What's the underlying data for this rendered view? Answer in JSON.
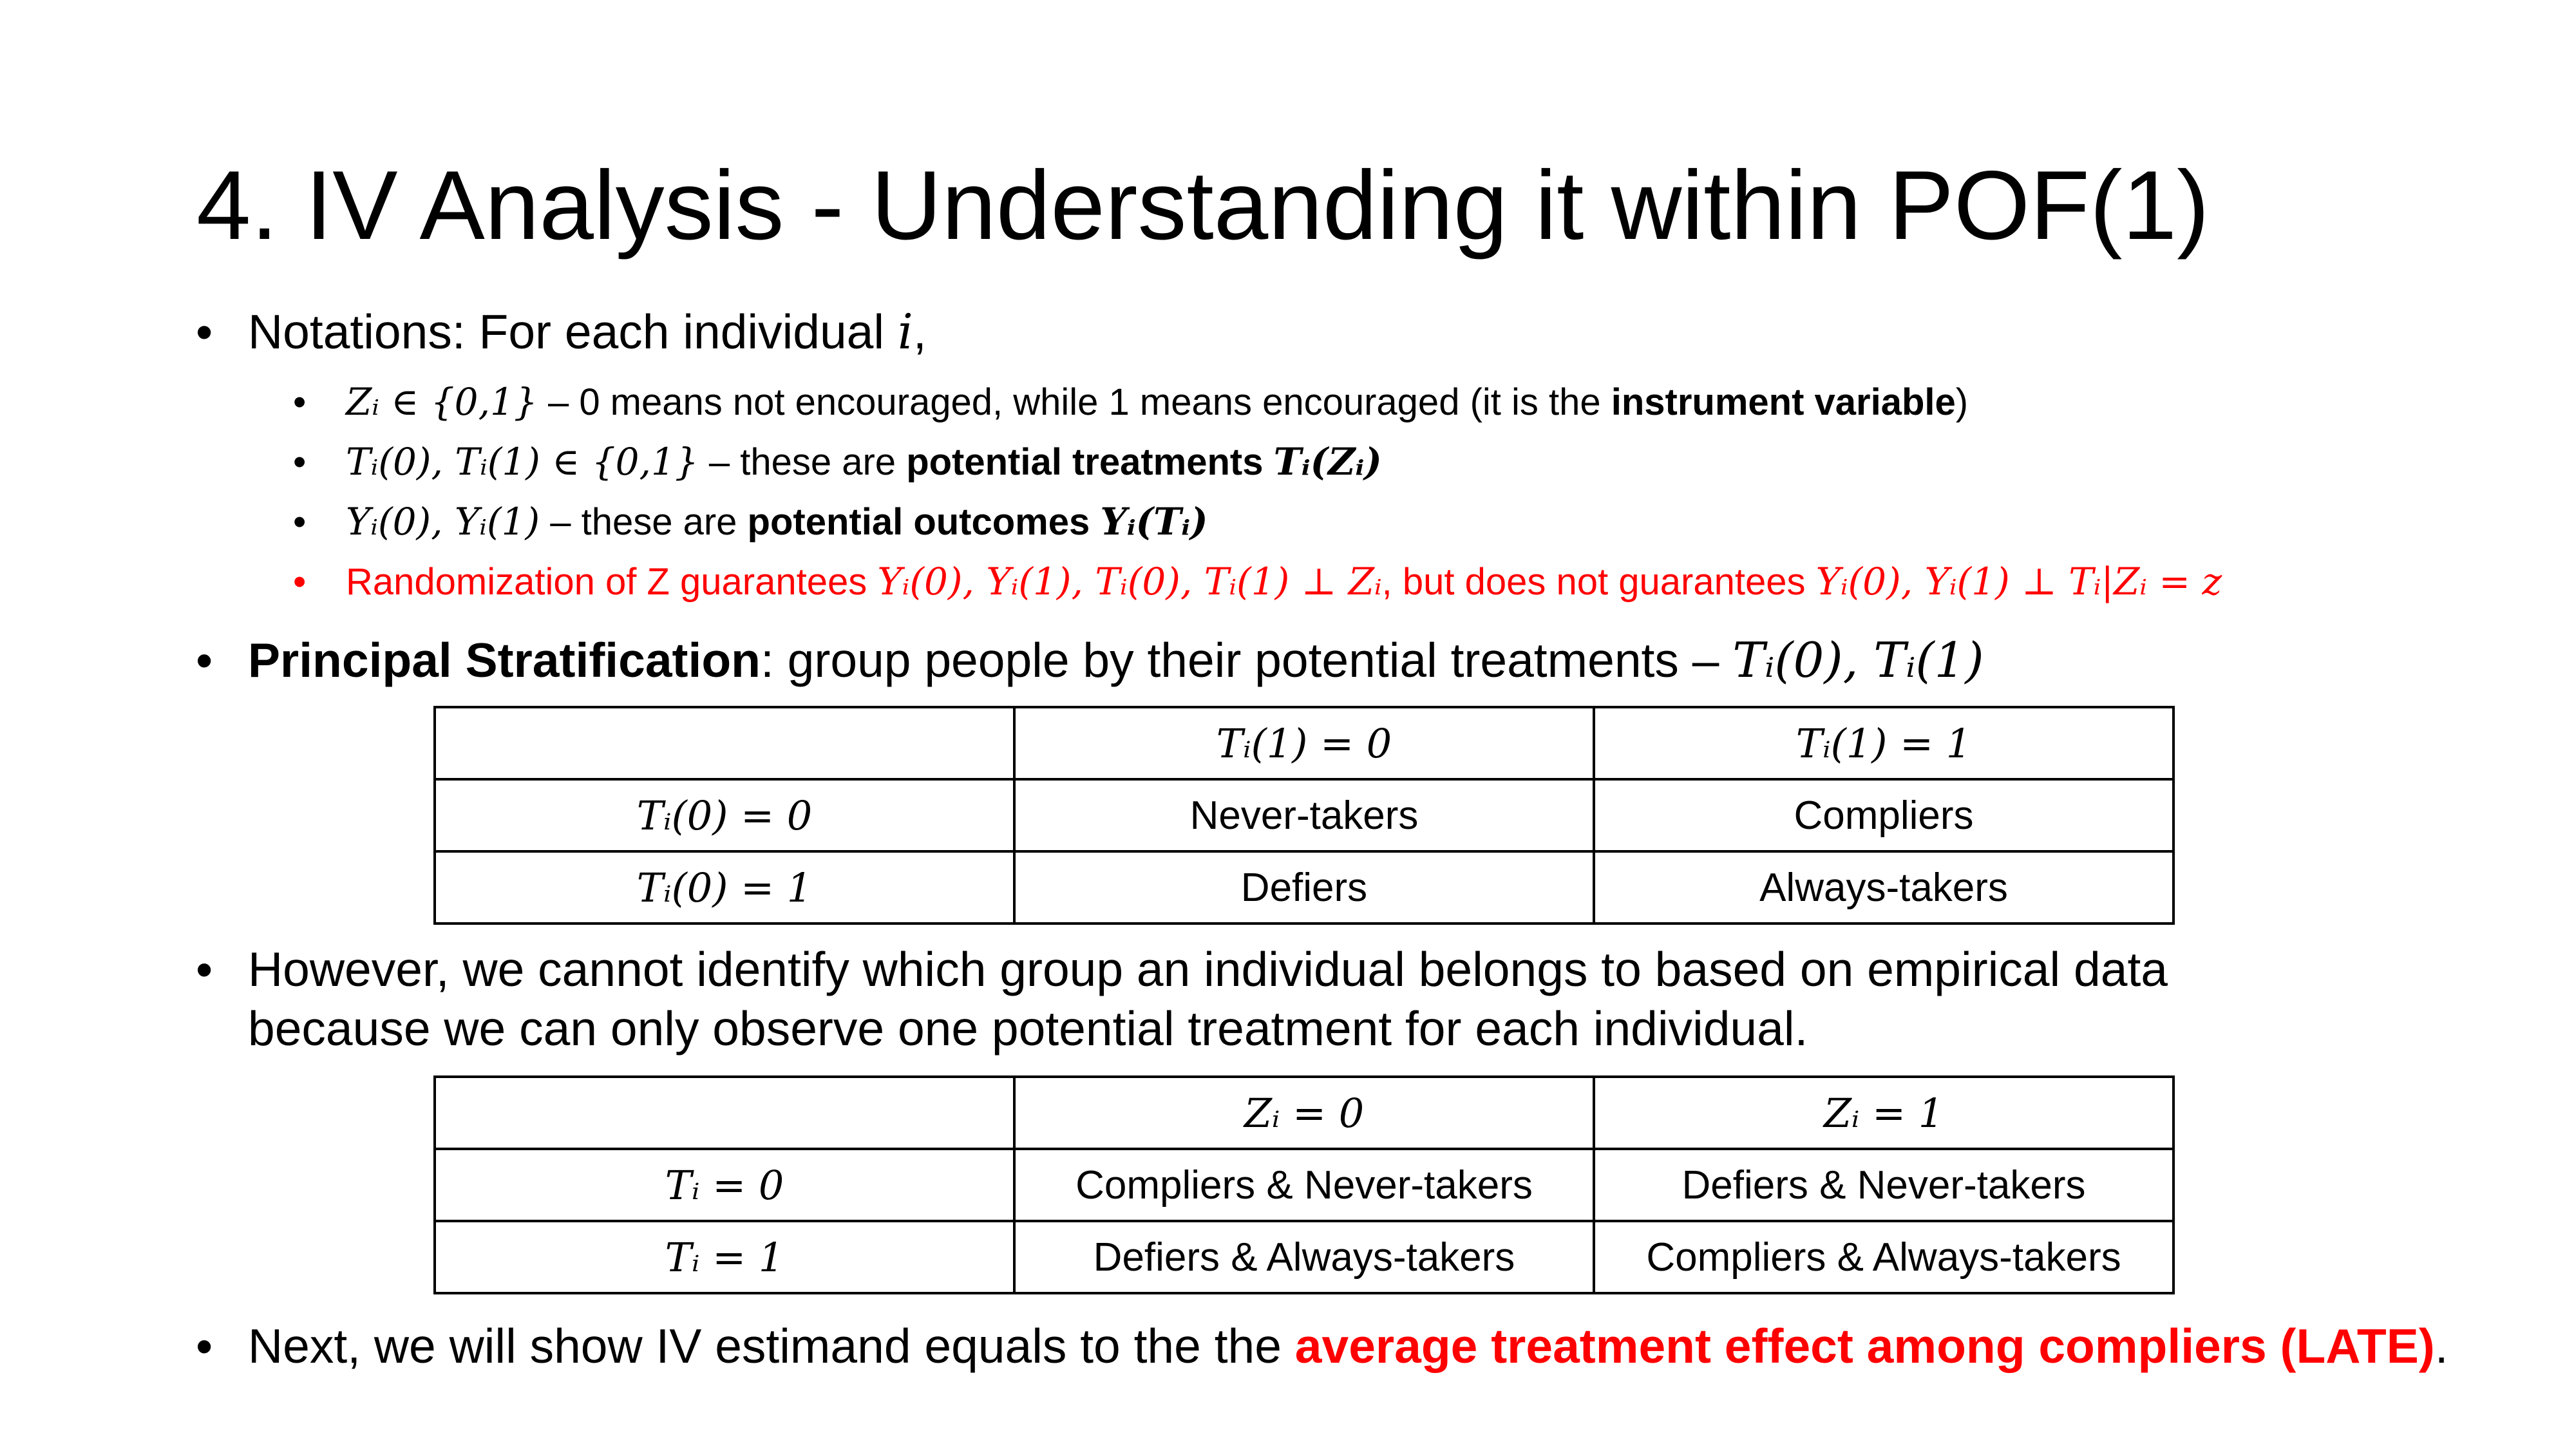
{
  "title": "4. IV Analysis - Understanding it within POF(1)",
  "bullets": {
    "notations": {
      "text": "Notations: For each individual ",
      "var": "i",
      "end": ","
    },
    "sub1": {
      "math": "Zᵢ ∈ {0,1}",
      "text": " – 0 means not encouraged, while 1 means encouraged (it is the ",
      "bold": "instrument variable",
      "end": ")"
    },
    "sub2": {
      "math": "Tᵢ(0), Tᵢ(1) ∈ {0,1}",
      "text": " – these are ",
      "bold": "potential treatments ",
      "bold_math": "Tᵢ(Zᵢ)"
    },
    "sub3": {
      "math": "Yᵢ(0), Yᵢ(1)",
      "text": " – these are ",
      "bold": "potential outcomes ",
      "bold_math": "Yᵢ(Tᵢ)"
    },
    "sub4": {
      "text1": "Randomization of Z guarantees ",
      "math1": "Yᵢ(0), Yᵢ(1), Tᵢ(0), Tᵢ(1) ⊥ Zᵢ",
      "text2": ", but does not guarantees ",
      "math2": "Yᵢ(0), Yᵢ(1) ⊥ Tᵢ|Zᵢ = z"
    },
    "principal": {
      "bold": "Principal Stratification",
      "text": ": group people by their potential treatments – ",
      "math": "Tᵢ(0), Tᵢ(1)"
    },
    "however": {
      "line1": "However, we cannot identify which group an individual belongs to based on empirical data",
      "line2": "because we can only observe one potential treatment for each individual."
    },
    "next": {
      "text": "Next, we will show IV estimand equals to the the ",
      "red_bold": "average treatment effect among compliers (LATE)",
      "end": "."
    },
    "bullet_glyph": "•"
  },
  "table1": {
    "header": [
      "",
      "Tᵢ(1) = 0",
      "Tᵢ(1) = 1"
    ],
    "rows": [
      [
        "Tᵢ(0) = 0",
        "Never-takers",
        "Compliers"
      ],
      [
        "Tᵢ(0) = 1",
        "Defiers",
        "Always-takers"
      ]
    ]
  },
  "table2": {
    "header": [
      "",
      "Zᵢ = 0",
      "Zᵢ = 1"
    ],
    "rows": [
      [
        "Tᵢ = 0",
        "Compliers & Never-takers",
        "Defiers & Never-takers"
      ],
      [
        "Tᵢ = 1",
        "Defiers & Always-takers",
        "Compliers & Always-takers"
      ]
    ]
  },
  "colors": {
    "accent_red": "#ff0000",
    "text": "#000000",
    "background": "#ffffff"
  }
}
